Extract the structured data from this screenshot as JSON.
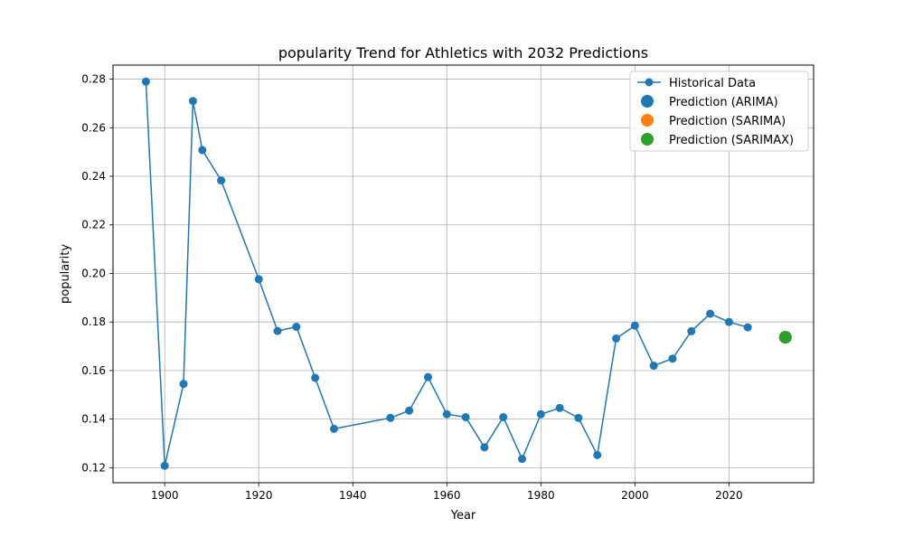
{
  "chart_data": {
    "type": "line",
    "title": "popularity Trend for Athletics with 2032 Predictions",
    "xlabel": "Year",
    "ylabel": "popularity",
    "xlim": [
      1889,
      2038
    ],
    "ylim": [
      0.1138,
      0.2858
    ],
    "xticks": [
      1900,
      1920,
      1940,
      1960,
      1980,
      2000,
      2020
    ],
    "yticks": [
      0.12,
      0.14,
      0.16,
      0.18,
      0.2,
      0.22,
      0.24,
      0.26,
      0.28
    ],
    "ytick_labels": [
      "0.12",
      "0.14",
      "0.16",
      "0.18",
      "0.20",
      "0.22",
      "0.24",
      "0.26",
      "0.28"
    ],
    "grid": true,
    "legend_position": "top-right",
    "series": [
      {
        "name": "Historical Data",
        "kind": "line-marker",
        "color": "#1f77b4",
        "x": [
          1896,
          1900,
          1904,
          1906,
          1908,
          1912,
          1920,
          1924,
          1928,
          1932,
          1936,
          1948,
          1952,
          1956,
          1960,
          1964,
          1968,
          1972,
          1976,
          1980,
          1984,
          1988,
          1992,
          1996,
          2000,
          2004,
          2008,
          2012,
          2016,
          2020,
          2024
        ],
        "y": [
          0.279,
          0.1208,
          0.1545,
          0.271,
          0.2508,
          0.2383,
          0.1976,
          0.1763,
          0.178,
          0.157,
          0.136,
          0.1405,
          0.1435,
          0.1573,
          0.142,
          0.1408,
          0.1284,
          0.1408,
          0.1236,
          0.142,
          0.1446,
          0.1405,
          0.1252,
          0.1732,
          0.1785,
          0.162,
          0.1649,
          0.1762,
          0.1834,
          0.18,
          0.1778
        ]
      },
      {
        "name": "Prediction (ARIMA)",
        "kind": "point",
        "color": "#1f77b4",
        "x": [
          2032
        ],
        "y": [
          0.1737
        ]
      },
      {
        "name": "Prediction (SARIMA)",
        "kind": "point",
        "color": "#ff7f0e",
        "x": [
          2032
        ],
        "y": [
          0.1737
        ]
      },
      {
        "name": "Prediction (SARIMAX)",
        "kind": "point",
        "color": "#2ca02c",
        "x": [
          2032
        ],
        "y": [
          0.1737
        ]
      }
    ]
  }
}
